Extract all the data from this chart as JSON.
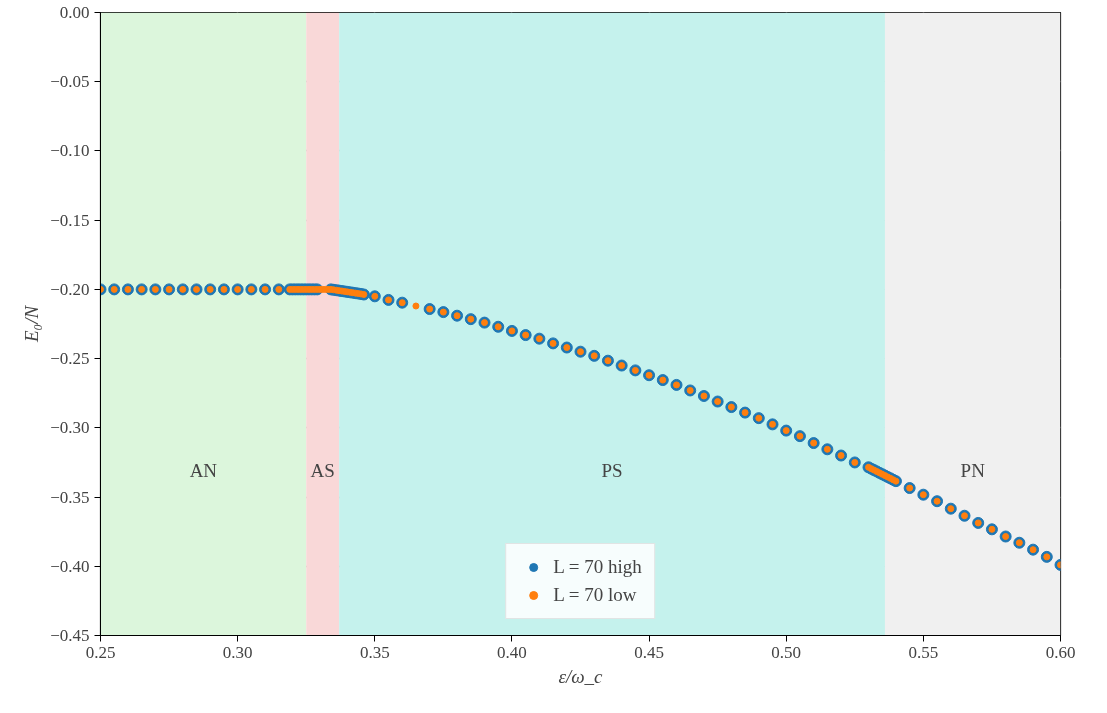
{
  "chart_data": {
    "type": "scatter",
    "xlabel": "ε/ω_c",
    "ylabel": "E₀/N",
    "xlim": [
      0.25,
      0.6
    ],
    "ylim": [
      -0.45,
      0.0
    ],
    "xticks": [
      {
        "value": 0.25,
        "label": "0.25"
      },
      {
        "value": 0.3,
        "label": "0.30"
      },
      {
        "value": 0.35,
        "label": "0.35"
      },
      {
        "value": 0.4,
        "label": "0.40"
      },
      {
        "value": 0.45,
        "label": "0.45"
      },
      {
        "value": 0.5,
        "label": "0.50"
      },
      {
        "value": 0.55,
        "label": "0.55"
      },
      {
        "value": 0.6,
        "label": "0.60"
      }
    ],
    "yticks": [
      {
        "value": 0.0,
        "label": "0.00"
      },
      {
        "value": -0.05,
        "label": "−0.05"
      },
      {
        "value": -0.1,
        "label": "−0.10"
      },
      {
        "value": -0.15,
        "label": "−0.15"
      },
      {
        "value": -0.2,
        "label": "−0.20"
      },
      {
        "value": -0.25,
        "label": "−0.25"
      },
      {
        "value": -0.3,
        "label": "−0.30"
      },
      {
        "value": -0.35,
        "label": "−0.35"
      },
      {
        "value": -0.4,
        "label": "−0.40"
      },
      {
        "value": -0.45,
        "label": "−0.45"
      }
    ],
    "grid": true,
    "legend": "bottom",
    "marker": "circle",
    "bands": [
      {
        "axis": "x",
        "from": 0.25,
        "to": 0.325,
        "label": "AN",
        "color": "#dcf6dc"
      },
      {
        "axis": "x",
        "from": 0.325,
        "to": 0.337,
        "label": "AS",
        "color": "#f9d8d8"
      },
      {
        "axis": "x",
        "from": 0.337,
        "to": 0.536,
        "label": "PS",
        "color": "#c5f2ed"
      },
      {
        "axis": "x",
        "from": 0.536,
        "to": 0.6,
        "label": "PN",
        "color": "#f0f0f0"
      }
    ],
    "series": [
      {
        "name": "L = 70 high",
        "color": "#1f77b4",
        "x": [
          0.25,
          0.255,
          0.26,
          0.265,
          0.27,
          0.275,
          0.28,
          0.285,
          0.29,
          0.295,
          0.3,
          0.305,
          0.31,
          0.315,
          0.319,
          0.32,
          0.321,
          0.322,
          0.323,
          0.324,
          0.325,
          0.326,
          0.327,
          0.328,
          0.329,
          0.334,
          0.335,
          0.336,
          0.337,
          0.338,
          0.339,
          0.34,
          0.341,
          0.342,
          0.343,
          0.344,
          0.345,
          0.346,
          0.35,
          0.355,
          0.36,
          0.37,
          0.375,
          0.38,
          0.385,
          0.39,
          0.395,
          0.4,
          0.405,
          0.41,
          0.415,
          0.42,
          0.425,
          0.43,
          0.435,
          0.44,
          0.445,
          0.45,
          0.455,
          0.46,
          0.465,
          0.47,
          0.475,
          0.48,
          0.485,
          0.49,
          0.495,
          0.5,
          0.505,
          0.51,
          0.515,
          0.52,
          0.525,
          0.53,
          0.531,
          0.532,
          0.533,
          0.534,
          0.535,
          0.536,
          0.537,
          0.538,
          0.539,
          0.54,
          0.545,
          0.55,
          0.555,
          0.56,
          0.565,
          0.57,
          0.575,
          0.58,
          0.585,
          0.59,
          0.595,
          0.6
        ],
        "values": [
          -0.2,
          -0.2,
          -0.2,
          -0.2,
          -0.2,
          -0.2,
          -0.2,
          -0.2,
          -0.2,
          -0.2,
          -0.2,
          -0.2,
          -0.2,
          -0.2,
          -0.2,
          -0.2,
          -0.2,
          -0.2,
          -0.2,
          -0.2,
          -0.2,
          -0.2,
          -0.2,
          -0.2,
          -0.2,
          -0.2,
          -0.2003,
          -0.2006,
          -0.2009,
          -0.2012,
          -0.2015,
          -0.2018,
          -0.2021,
          -0.2024,
          -0.2027,
          -0.203,
          -0.2033,
          -0.2037,
          -0.205,
          -0.2076,
          -0.2096,
          -0.2142,
          -0.2164,
          -0.219,
          -0.2215,
          -0.224,
          -0.227,
          -0.23,
          -0.233,
          -0.2356,
          -0.239,
          -0.242,
          -0.245,
          -0.248,
          -0.2515,
          -0.255,
          -0.2585,
          -0.262,
          -0.2655,
          -0.269,
          -0.273,
          -0.277,
          -0.281,
          -0.285,
          -0.289,
          -0.293,
          -0.2975,
          -0.302,
          -0.306,
          -0.311,
          -0.3155,
          -0.32,
          -0.325,
          -0.3285,
          -0.3295,
          -0.3305,
          -0.3315,
          -0.3325,
          -0.3335,
          -0.3345,
          -0.3355,
          -0.3365,
          -0.3375,
          -0.3385,
          -0.3435,
          -0.3483,
          -0.353,
          -0.3584,
          -0.3635,
          -0.3687,
          -0.3733,
          -0.3785,
          -0.383,
          -0.388,
          -0.3932,
          -0.399
        ]
      },
      {
        "name": "L = 70 low",
        "color": "#ff7f0e",
        "x": [
          0.25,
          0.255,
          0.26,
          0.265,
          0.27,
          0.275,
          0.28,
          0.285,
          0.29,
          0.295,
          0.3,
          0.305,
          0.31,
          0.315,
          0.319,
          0.32,
          0.321,
          0.322,
          0.323,
          0.324,
          0.325,
          0.326,
          0.327,
          0.328,
          0.329,
          0.33,
          0.331,
          0.332,
          0.333,
          0.334,
          0.335,
          0.336,
          0.337,
          0.338,
          0.339,
          0.34,
          0.341,
          0.342,
          0.343,
          0.344,
          0.345,
          0.346,
          0.35,
          0.355,
          0.36,
          0.365,
          0.37,
          0.375,
          0.38,
          0.385,
          0.39,
          0.395,
          0.4,
          0.405,
          0.41,
          0.415,
          0.42,
          0.425,
          0.43,
          0.435,
          0.44,
          0.445,
          0.45,
          0.455,
          0.46,
          0.465,
          0.47,
          0.475,
          0.48,
          0.485,
          0.49,
          0.495,
          0.5,
          0.505,
          0.51,
          0.515,
          0.52,
          0.525,
          0.53,
          0.531,
          0.532,
          0.533,
          0.534,
          0.535,
          0.536,
          0.537,
          0.538,
          0.539,
          0.54,
          0.545,
          0.55,
          0.555,
          0.56,
          0.565,
          0.57,
          0.575,
          0.58,
          0.585,
          0.59,
          0.595,
          0.6
        ],
        "values": [
          -0.2,
          -0.2,
          -0.2,
          -0.2,
          -0.2,
          -0.2,
          -0.2,
          -0.2,
          -0.2,
          -0.2,
          -0.2,
          -0.2,
          -0.2,
          -0.2,
          -0.2,
          -0.2,
          -0.2,
          -0.2,
          -0.2,
          -0.2,
          -0.2,
          -0.2,
          -0.2,
          -0.2,
          -0.2,
          -0.2,
          -0.2,
          -0.2,
          -0.2,
          -0.2,
          -0.2003,
          -0.2006,
          -0.2009,
          -0.2012,
          -0.2015,
          -0.2018,
          -0.2021,
          -0.2024,
          -0.2027,
          -0.203,
          -0.2033,
          -0.2037,
          -0.205,
          -0.2076,
          -0.2096,
          -0.212,
          -0.2142,
          -0.2164,
          -0.219,
          -0.2215,
          -0.224,
          -0.227,
          -0.23,
          -0.233,
          -0.2356,
          -0.239,
          -0.242,
          -0.245,
          -0.248,
          -0.2515,
          -0.255,
          -0.2585,
          -0.262,
          -0.2655,
          -0.269,
          -0.273,
          -0.277,
          -0.281,
          -0.285,
          -0.289,
          -0.293,
          -0.2975,
          -0.302,
          -0.306,
          -0.311,
          -0.3155,
          -0.32,
          -0.325,
          -0.3285,
          -0.3295,
          -0.3305,
          -0.3315,
          -0.3325,
          -0.3335,
          -0.3345,
          -0.3355,
          -0.3365,
          -0.3375,
          -0.3385,
          -0.3435,
          -0.3483,
          -0.353,
          -0.3584,
          -0.3635,
          -0.3687,
          -0.3733,
          -0.3785,
          -0.383,
          -0.388,
          -0.3932,
          -0.399
        ]
      }
    ]
  }
}
